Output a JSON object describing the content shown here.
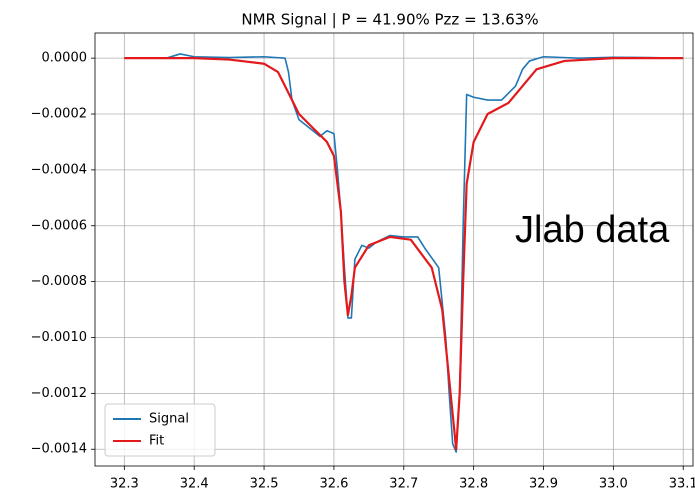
{
  "chart_data": {
    "type": "line",
    "title": "NMR Signal  |  P = 41.90%  Pzz = 13.63%",
    "annotation": "Jlab data",
    "xlim": [
      32.258,
      33.114
    ],
    "ylim": [
      -0.00146,
      9e-05
    ],
    "xticks": [
      32.3,
      32.4,
      32.5,
      32.6,
      32.7,
      32.8,
      32.9,
      {
        "value": 33.0,
        "label": "33.0"
      },
      33.1
    ],
    "yticks": [
      {
        "value": 0,
        "label": "0.0000"
      },
      {
        "value": -0.0002,
        "label": "−0.0002"
      },
      {
        "value": -0.0004,
        "label": "−0.0004"
      },
      {
        "value": -0.0006,
        "label": "−0.0006"
      },
      {
        "value": -0.0008,
        "label": "−0.0008"
      },
      {
        "value": -0.001,
        "label": "−0.0010"
      },
      {
        "value": -0.0012,
        "label": "−0.0012"
      },
      {
        "value": -0.0014,
        "label": "−0.0014"
      }
    ],
    "grid": true,
    "legend": "lower left",
    "series": [
      {
        "name": "Signal",
        "color": "#1f77b4",
        "x": [
          32.3,
          32.36,
          32.38,
          32.4,
          32.45,
          32.5,
          32.53,
          32.535,
          32.54,
          32.55,
          32.57,
          32.58,
          32.59,
          32.6,
          32.605,
          32.61,
          32.615,
          32.62,
          32.625,
          32.63,
          32.64,
          32.65,
          32.66,
          32.68,
          32.7,
          32.72,
          32.73,
          32.75,
          32.76,
          32.765,
          32.77,
          32.775,
          32.78,
          32.785,
          32.79,
          32.8,
          32.82,
          32.84,
          32.86,
          32.87,
          32.88,
          32.9,
          32.95,
          33.0,
          33.05,
          33.1
        ],
        "values": [
          0,
          0,
          1.5e-05,
          5e-06,
          2e-06,
          5e-06,
          0,
          -5e-05,
          -0.00015,
          -0.00022,
          -0.00026,
          -0.00028,
          -0.00026,
          -0.00027,
          -0.0004,
          -0.00055,
          -0.00075,
          -0.00093,
          -0.00093,
          -0.00072,
          -0.00067,
          -0.00068,
          -0.00066,
          -0.000635,
          -0.00064,
          -0.00064,
          -0.00068,
          -0.00075,
          -0.001,
          -0.0012,
          -0.00138,
          -0.00141,
          -0.0012,
          -0.0006,
          -0.00013,
          -0.00014,
          -0.00015,
          -0.00015,
          -0.0001,
          -4e-05,
          -1e-05,
          5e-06,
          0,
          3e-06,
          2e-06,
          0
        ]
      },
      {
        "name": "Fit",
        "color": "#e31a1c",
        "x": [
          32.3,
          32.4,
          32.45,
          32.5,
          32.52,
          32.54,
          32.55,
          32.57,
          32.59,
          32.6,
          32.61,
          32.615,
          32.62,
          32.625,
          32.63,
          32.65,
          32.68,
          32.71,
          32.74,
          32.755,
          32.765,
          32.775,
          32.78,
          32.785,
          32.79,
          32.8,
          32.82,
          32.85,
          32.87,
          32.89,
          32.93,
          33.0,
          33.1
        ],
        "values": [
          0,
          0,
          -5e-06,
          -2e-05,
          -5e-05,
          -0.00015,
          -0.0002,
          -0.00025,
          -0.0003,
          -0.00035,
          -0.00055,
          -0.0008,
          -0.00092,
          -0.00085,
          -0.00075,
          -0.00067,
          -0.00064,
          -0.00065,
          -0.00075,
          -0.0009,
          -0.00115,
          -0.0014,
          -0.0012,
          -0.0008,
          -0.00045,
          -0.0003,
          -0.0002,
          -0.00016,
          -0.0001,
          -4e-05,
          -1e-05,
          0,
          0
        ]
      }
    ]
  }
}
